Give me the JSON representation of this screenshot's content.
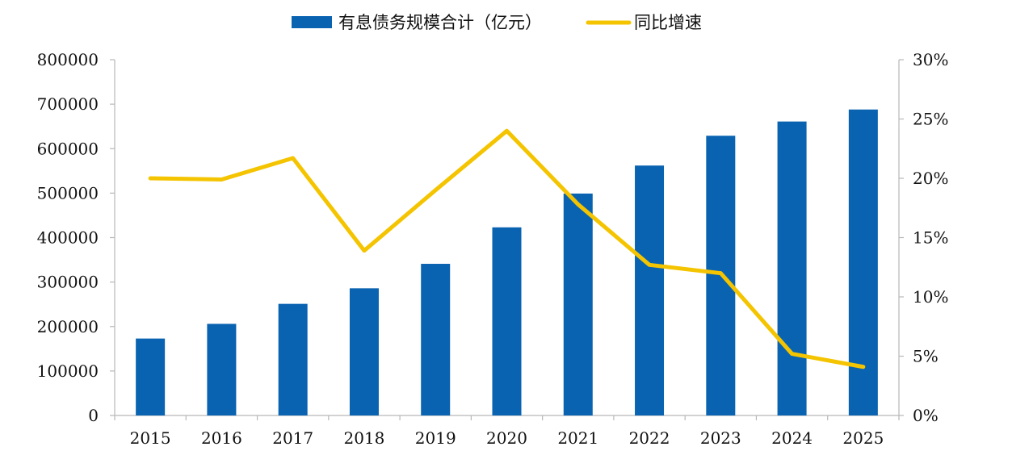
{
  "chart_data": {
    "type": "bar",
    "categories": [
      "2015",
      "2016",
      "2017",
      "2018",
      "2019",
      "2020",
      "2021",
      "2022",
      "2023",
      "2024",
      "2025"
    ],
    "series": [
      {
        "name": "有息债务规模合计（亿元）",
        "type": "bar",
        "axis": "left",
        "color": "#0a63b0",
        "values": [
          173000,
          206000,
          251000,
          286000,
          341000,
          423000,
          499000,
          562000,
          629000,
          661000,
          688000
        ]
      },
      {
        "name": "同比增速",
        "type": "line",
        "axis": "right",
        "color": "#f5c400",
        "values": [
          0.2,
          0.199,
          0.217,
          0.139,
          0.19,
          0.24,
          0.178,
          0.127,
          0.12,
          0.052,
          0.041
        ]
      }
    ],
    "y_left": {
      "min": 0,
      "max": 800000,
      "ticks": [
        "0",
        "100000",
        "200000",
        "300000",
        "400000",
        "500000",
        "600000",
        "700000",
        "800000"
      ]
    },
    "y_right": {
      "min": 0,
      "max": 0.3,
      "ticks": [
        "0%",
        "5%",
        "10%",
        "15%",
        "20%",
        "25%",
        "30%"
      ]
    },
    "legend_position": "top-center",
    "grid": false
  }
}
